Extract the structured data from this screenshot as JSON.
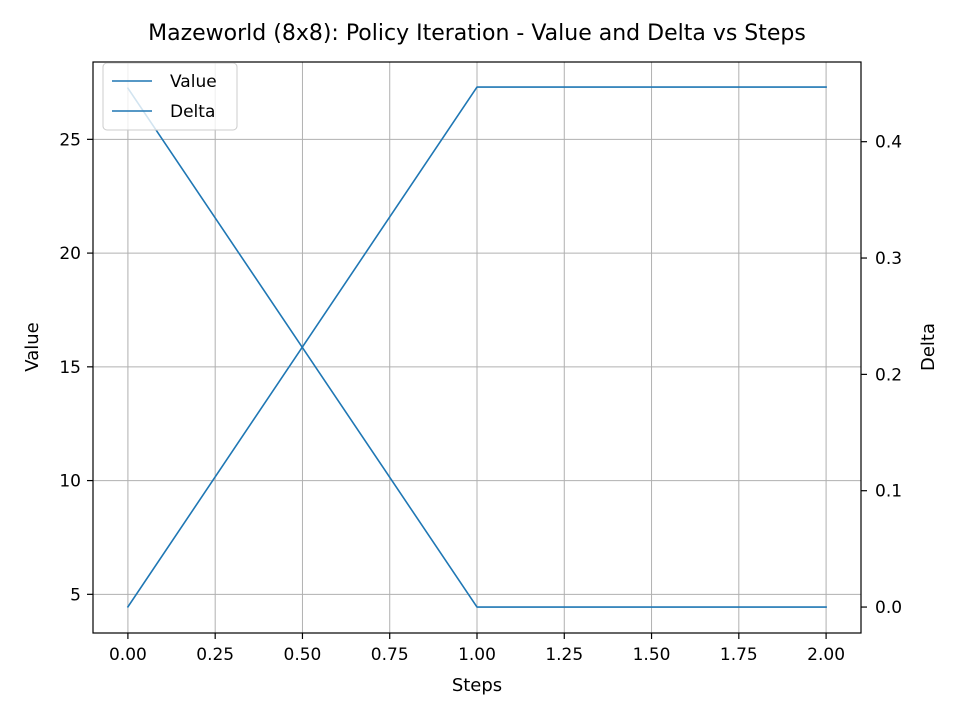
{
  "chart_data": {
    "type": "line",
    "title": "Mazeworld (8x8): Policy Iteration - Value and Delta vs Steps",
    "xlabel": "Steps",
    "ylabel_left": "Value",
    "ylabel_right": "Delta",
    "x": [
      0,
      1,
      2
    ],
    "xlim": [
      -0.1,
      2.1
    ],
    "xticks": [
      0.0,
      0.25,
      0.5,
      0.75,
      1.0,
      1.25,
      1.5,
      1.75,
      2.0
    ],
    "xtick_labels": [
      "0.00",
      "0.25",
      "0.50",
      "0.75",
      "1.00",
      "1.25",
      "1.50",
      "1.75",
      "2.00"
    ],
    "ylim_left": [
      3.3,
      28.4
    ],
    "yticks_left": [
      5,
      10,
      15,
      20,
      25
    ],
    "ytick_labels_left": [
      "5",
      "10",
      "15",
      "20",
      "25"
    ],
    "ylim_right": [
      -0.0223,
      0.4685
    ],
    "yticks_right": [
      0.0,
      0.1,
      0.2,
      0.3,
      0.4
    ],
    "ytick_labels_right": [
      "0.0",
      "0.1",
      "0.2",
      "0.3",
      "0.4"
    ],
    "grid": true,
    "legend_position": "top-left",
    "series": [
      {
        "name": "Value",
        "axis": "left",
        "values": [
          4.45,
          27.3,
          27.3
        ],
        "color": "#1f77b4"
      },
      {
        "name": "Delta",
        "axis": "right",
        "values": [
          0.446,
          0.0,
          0.0
        ],
        "color": "#1f77b4"
      }
    ]
  }
}
